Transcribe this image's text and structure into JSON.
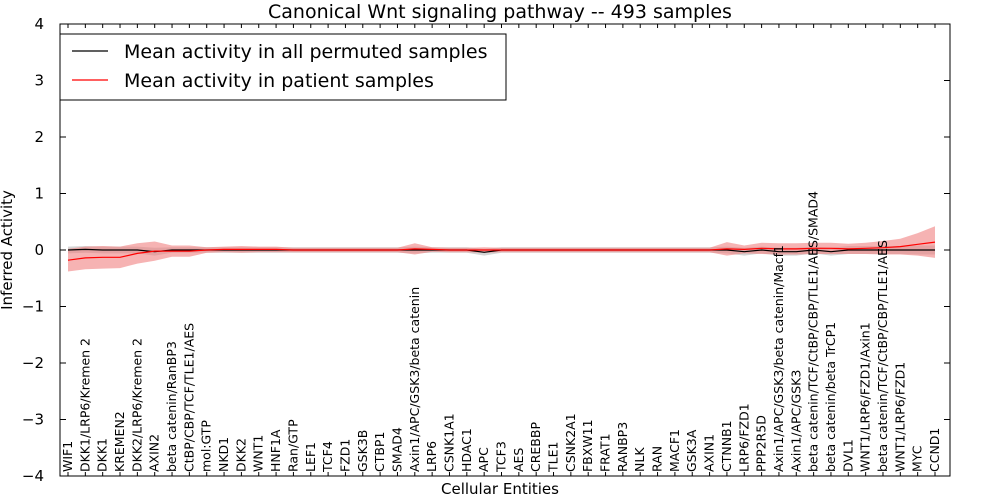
{
  "chart_data": {
    "type": "line",
    "title": "Canonical Wnt signaling pathway -- 493 samples",
    "xlabel": "Cellular Entities",
    "ylabel": "Inferred Activity",
    "ylim": [
      -4,
      4
    ],
    "yticks": [
      -4,
      -3,
      -2,
      -1,
      0,
      1,
      2,
      3,
      4
    ],
    "ytick_labels": [
      "−4",
      "−3",
      "−2",
      "−1",
      "0",
      "1",
      "2",
      "3",
      "4"
    ],
    "legend_position": "top-left",
    "grid": false,
    "categories": [
      "WIF1",
      "DKK1/LRP6/Kremen 2",
      "DKK1",
      "KREMEN2",
      "DKK2/LRP6/Kremen 2",
      "AXIN2",
      "beta catenin/RanBP3",
      "CtBP/CBP/TCF/TLE1/AES",
      "mol:GTP",
      "NKD1",
      "DKK2",
      "WNT1",
      "HNF1A",
      "Ran/GTP",
      "LEF1",
      "TCF4",
      "FZD1",
      "GSK3B",
      "CTBP1",
      "SMAD4",
      "Axin1/APC/GSK3/beta catenin",
      "LRP6",
      "CSNK1A1",
      "HDAC1",
      "APC",
      "TCF3",
      "AES",
      "CREBBP",
      "TLE1",
      "CSNK2A1",
      "FBXW11",
      "FRAT1",
      "RANBP3",
      "NLK",
      "RAN",
      "MACF1",
      "GSK3A",
      "AXIN1",
      "CTNNB1",
      "LRP6/FZD1",
      "PPP2R5D",
      "Axin1/APC/GSK3/beta catenin/Macf1",
      "Axin1/APC/GSK3",
      "beta catenin/TCF/CtBP/CBP/TLE1/AES/SMAD4",
      "beta catenin/beta TrCP1",
      "DVL1",
      "WNT1/LRP6/FZD1/Axin1",
      "beta catenin/TCF/CtBP/CBP/TLE1/AES",
      "WNT1/LRP6/FZD1",
      "MYC",
      "CCND1"
    ],
    "series": [
      {
        "name": "Mean activity in all permuted samples",
        "color": "#000000",
        "band_color": "#b3b3b3",
        "values": [
          0.0,
          0.01,
          0.0,
          0.0,
          0.0,
          -0.03,
          0.0,
          0.0,
          0.0,
          0.0,
          0.0,
          0.0,
          0.0,
          0.0,
          0.0,
          0.0,
          0.0,
          0.0,
          0.0,
          0.0,
          0.0,
          0.0,
          0.0,
          0.0,
          -0.04,
          0.0,
          0.0,
          0.0,
          0.0,
          0.0,
          0.0,
          0.0,
          0.0,
          0.0,
          0.0,
          0.0,
          0.0,
          0.0,
          0.0,
          -0.03,
          0.0,
          -0.03,
          -0.03,
          0.0,
          -0.03,
          0.0,
          0.0,
          0.0,
          0.0,
          0.0,
          0.0
        ],
        "band": [
          0.06,
          0.06,
          0.06,
          0.06,
          0.06,
          0.07,
          0.05,
          0.05,
          0.05,
          0.05,
          0.05,
          0.05,
          0.05,
          0.05,
          0.05,
          0.05,
          0.05,
          0.05,
          0.05,
          0.05,
          0.06,
          0.05,
          0.05,
          0.05,
          0.06,
          0.05,
          0.05,
          0.05,
          0.05,
          0.05,
          0.05,
          0.05,
          0.05,
          0.05,
          0.05,
          0.05,
          0.05,
          0.05,
          0.06,
          0.07,
          0.06,
          0.07,
          0.07,
          0.06,
          0.07,
          0.07,
          0.07,
          0.07,
          0.07,
          0.08,
          0.08
        ]
      },
      {
        "name": "Mean activity in patient samples",
        "color": "#ff0000",
        "band_color": "#f08080",
        "values": [
          -0.18,
          -0.14,
          -0.13,
          -0.13,
          -0.06,
          -0.02,
          -0.02,
          -0.02,
          0.0,
          0.01,
          0.01,
          0.01,
          0.01,
          0.0,
          0.0,
          0.0,
          0.0,
          0.0,
          0.0,
          0.0,
          0.02,
          0.01,
          0.0,
          0.0,
          0.0,
          0.0,
          0.0,
          0.0,
          0.0,
          0.0,
          0.0,
          0.0,
          0.0,
          0.0,
          0.0,
          0.0,
          0.0,
          0.0,
          0.02,
          0.01,
          0.03,
          0.02,
          0.02,
          0.03,
          0.03,
          0.02,
          0.03,
          0.04,
          0.06,
          0.1,
          0.14
        ],
        "band": [
          0.2,
          0.2,
          0.2,
          0.19,
          0.18,
          0.17,
          0.1,
          0.1,
          0.05,
          0.05,
          0.06,
          0.05,
          0.05,
          0.04,
          0.04,
          0.04,
          0.04,
          0.04,
          0.04,
          0.04,
          0.1,
          0.04,
          0.04,
          0.04,
          0.05,
          0.04,
          0.04,
          0.04,
          0.04,
          0.04,
          0.04,
          0.04,
          0.04,
          0.04,
          0.04,
          0.04,
          0.04,
          0.04,
          0.12,
          0.07,
          0.1,
          0.1,
          0.1,
          0.1,
          0.1,
          0.09,
          0.1,
          0.12,
          0.14,
          0.2,
          0.28
        ]
      }
    ]
  }
}
